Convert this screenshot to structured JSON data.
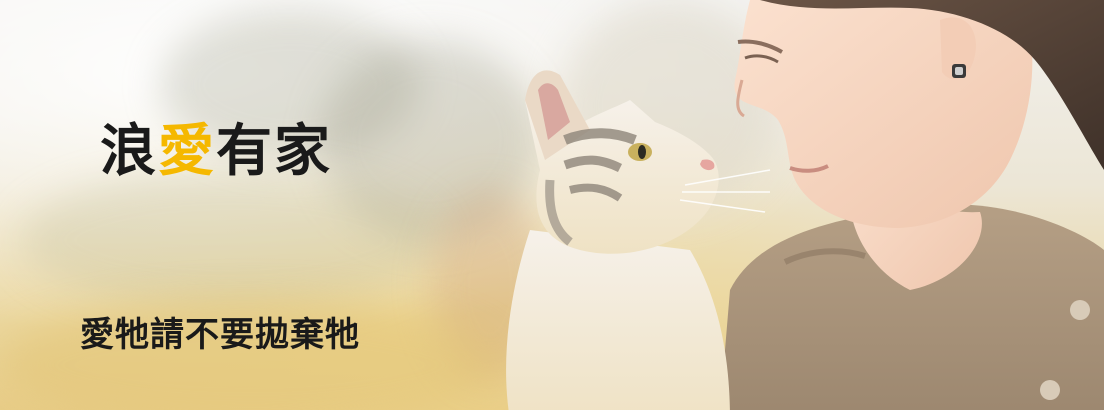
{
  "banner": {
    "headline": {
      "part1": "浪",
      "accent": "愛",
      "part2": "有家"
    },
    "tagline": "愛牠請不要拋棄牠"
  },
  "colors": {
    "accent": "#f5b800",
    "text": "#1a1a1a"
  },
  "icons": {
    "cat": "cat-photo",
    "woman": "woman-photo"
  }
}
